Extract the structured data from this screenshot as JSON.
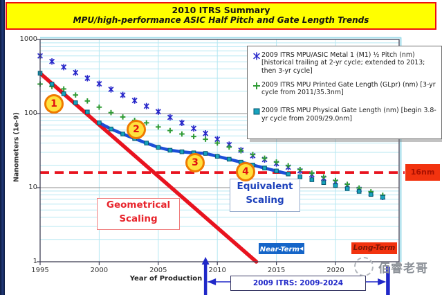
{
  "banner": {
    "line1": "2010 ITRS Summary",
    "line2": "MPU/high-performance ASIC Half Pitch and Gate Length Trends"
  },
  "legend": {
    "items": [
      {
        "marker": "blue-star-marker",
        "label": "2009 ITRS MPU/ASIC Metal 1 (M1) ½ Pitch (nm) [historical trailing at 2-yr cycle; extended to 2013; then 3-yr cycle]"
      },
      {
        "marker": "green-plus-marker",
        "label": "2009 ITRS MPU Printed Gate Length (GLpr) (nm) [3-yr cycle from 2011/35.3nm]"
      },
      {
        "marker": "teal-square-marker",
        "label": "2009 ITRS MPU Physical Gate Length (nm) [begin 3.8-yr cycle from 2009/29.0nm]"
      }
    ]
  },
  "axes": {
    "y_title": "Nanometers (1e-9)",
    "x_title": "Year of Production",
    "y_ticks": [
      "1000",
      "100",
      "10",
      "1"
    ],
    "x_ticks": [
      "1995",
      "2000",
      "2005",
      "2010",
      "2015",
      "2020"
    ]
  },
  "annotations": {
    "steps": [
      "1",
      "2",
      "3",
      "4"
    ],
    "geometrical_line1": "Geometrical",
    "geometrical_line2": "Scaling",
    "equivalent_line1": "Equivalent",
    "equivalent_line2": "Scaling",
    "near_term": "Near-Term",
    "long_term": "Long-Term",
    "reference_label": "16nm",
    "bracket_label": "2009 ITRS:  2009-2024"
  },
  "watermark": "佰睿老哥",
  "chart_data": {
    "type": "line",
    "title": "2010 ITRS Summary — MPU/high-performance ASIC Half Pitch and Gate Length Trends",
    "xlabel": "Year of Production",
    "ylabel": "Nanometers (1e-9)",
    "x_range": [
      1995,
      2025
    ],
    "y_range_log": [
      1,
      1000
    ],
    "grid": true,
    "legend_position": "top-right",
    "years": [
      1995,
      1996,
      1997,
      1998,
      1999,
      2000,
      2001,
      2002,
      2003,
      2004,
      2005,
      2006,
      2007,
      2008,
      2009,
      2010,
      2011,
      2012,
      2013,
      2014,
      2015,
      2016,
      2017,
      2018,
      2019,
      2020,
      2021,
      2022,
      2023,
      2024
    ],
    "series": [
      {
        "name": "2009 ITRS MPU/ASIC Metal 1 (M1) ½ Pitch (nm)",
        "marker": "star",
        "color": "#2626c9",
        "values": [
          600,
          505,
          424,
          357,
          300,
          252,
          212,
          178,
          150,
          126,
          106,
          89,
          75,
          63,
          54,
          45,
          38,
          32,
          27,
          24,
          21.2,
          18.9,
          16.9,
          15,
          13.4,
          11.9,
          10.6,
          9.5,
          8.4,
          7.5
        ]
      },
      {
        "name": "2009 ITRS MPU Printed Gate Length (GLpr) (nm)",
        "marker": "plus",
        "color": "#2e9b34",
        "values": [
          250,
          232,
          215,
          178,
          148,
          122,
          103,
          90,
          81,
          75,
          66,
          59,
          53,
          49,
          45,
          40,
          35.3,
          31.5,
          28,
          25,
          22.2,
          19.8,
          17.6,
          15.7,
          14,
          12.5,
          11.1,
          9.9,
          8.8,
          7.9
        ]
      },
      {
        "name": "2009 ITRS MPU Physical Gate Length (nm)",
        "marker": "square",
        "color": "#17a3bd",
        "values": [
          350,
          250,
          185,
          140,
          105,
          75,
          62,
          53,
          46,
          40,
          35,
          32,
          30.5,
          29.5,
          29,
          26.5,
          24.2,
          22.1,
          20.2,
          18.4,
          16.8,
          15.3,
          14,
          12.8,
          11.7,
          10.7,
          9.7,
          8.9,
          8.1,
          7.4
        ]
      }
    ],
    "trend_lines": [
      {
        "name": "geometrical-scaling",
        "color": "#e8131f",
        "points": [
          [
            1995,
            350
          ],
          [
            2013.3,
            1
          ]
        ]
      },
      {
        "name": "equivalent-scaling",
        "color": "#1c4ed8",
        "follows_series": 2,
        "year_start": 2000,
        "year_end": 2016
      }
    ],
    "reference_line": {
      "value": 16,
      "style": "dashed",
      "color": "#e8131f",
      "label": "16nm"
    },
    "step_annotations": [
      {
        "label": "1",
        "year": 1996.2,
        "nm": 135
      },
      {
        "label": "2",
        "year": 2003.1,
        "nm": 61
      },
      {
        "label": "3",
        "year": 2008.1,
        "nm": 22
      },
      {
        "label": "4",
        "year": 2012.4,
        "nm": 16.4
      }
    ],
    "timeline": {
      "label": "2009 ITRS:  2009-2024",
      "start_year": 2009,
      "end_year": 2024.4
    }
  }
}
